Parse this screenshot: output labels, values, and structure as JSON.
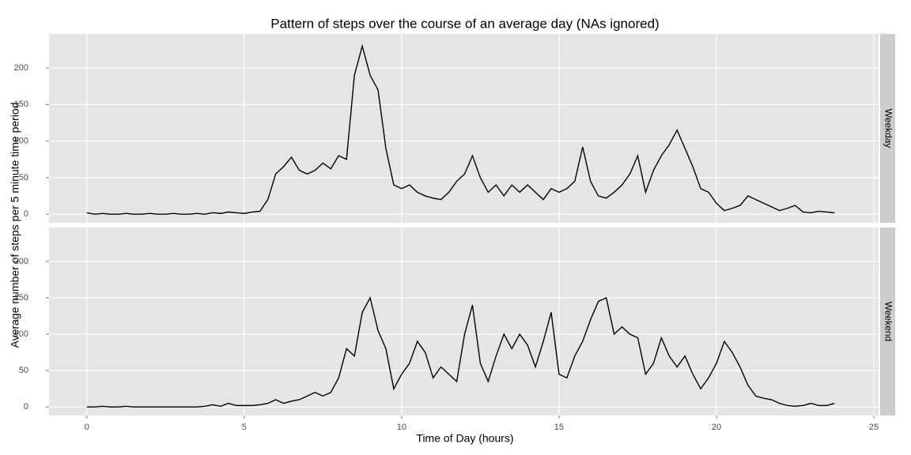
{
  "chart_data": {
    "type": "line",
    "title": "Pattern of steps over the course of an average day (NAs ignored)",
    "x_label": "Time of Day (hours)",
    "y_label": "Average number of steps per 5 minute time period",
    "x": [
      0,
      0.25,
      0.5,
      0.75,
      1,
      1.25,
      1.5,
      1.75,
      2,
      2.25,
      2.5,
      2.75,
      3,
      3.25,
      3.5,
      3.75,
      4,
      4.25,
      4.5,
      4.75,
      5,
      5.25,
      5.5,
      5.75,
      6,
      6.25,
      6.5,
      6.75,
      7,
      7.25,
      7.5,
      7.75,
      8,
      8.25,
      8.5,
      8.75,
      9,
      9.25,
      9.5,
      9.75,
      10,
      10.25,
      10.5,
      10.75,
      11,
      11.25,
      11.5,
      11.75,
      12,
      12.25,
      12.5,
      12.75,
      13,
      13.25,
      13.5,
      13.75,
      14,
      14.25,
      14.5,
      14.75,
      15,
      15.25,
      15.5,
      15.75,
      16,
      16.25,
      16.5,
      16.75,
      17,
      17.25,
      17.5,
      17.75,
      18,
      18.25,
      18.5,
      18.75,
      19,
      19.25,
      19.5,
      19.75,
      20,
      20.25,
      20.5,
      20.75,
      21,
      21.25,
      21.5,
      21.75,
      22,
      22.25,
      22.5,
      22.75,
      23,
      23.25,
      23.5,
      23.75
    ],
    "series": [
      {
        "name": "Weekday",
        "color": "#000000",
        "values": [
          2,
          0,
          1,
          0,
          0,
          1,
          0,
          0,
          1,
          0,
          0,
          1,
          0,
          0,
          1,
          0,
          2,
          1,
          3,
          2,
          1,
          3,
          4,
          20,
          55,
          65,
          78,
          60,
          55,
          60,
          70,
          62,
          80,
          75,
          190,
          230,
          190,
          170,
          90,
          40,
          35,
          40,
          30,
          25,
          22,
          20,
          30,
          45,
          55,
          80,
          50,
          30,
          40,
          25,
          40,
          30,
          40,
          30,
          20,
          35,
          30,
          35,
          45,
          92,
          45,
          25,
          22,
          30,
          40,
          55,
          80,
          30,
          60,
          80,
          95,
          115,
          90,
          65,
          35,
          30,
          15,
          5,
          8,
          12,
          25,
          20,
          15,
          10,
          5,
          8,
          12,
          3,
          2,
          4,
          3,
          2
        ]
      },
      {
        "name": "Weekend",
        "color": "#000000",
        "values": [
          0,
          0,
          1,
          0,
          0,
          1,
          0,
          0,
          0,
          0,
          0,
          0,
          0,
          0,
          0,
          1,
          3,
          1,
          5,
          2,
          2,
          2,
          3,
          5,
          10,
          5,
          8,
          10,
          15,
          20,
          15,
          20,
          40,
          80,
          70,
          130,
          150,
          105,
          80,
          25,
          45,
          60,
          90,
          75,
          40,
          55,
          45,
          35,
          100,
          140,
          60,
          35,
          70,
          100,
          80,
          100,
          85,
          55,
          90,
          130,
          45,
          40,
          70,
          90,
          120,
          145,
          150,
          100,
          110,
          100,
          95,
          45,
          60,
          95,
          70,
          55,
          70,
          45,
          25,
          40,
          60,
          90,
          75,
          55,
          30,
          15,
          12,
          10,
          5,
          2,
          1,
          2,
          5,
          2,
          2,
          5
        ]
      }
    ],
    "xlim": [
      -1.2,
      25.15
    ],
    "ylim": [
      -11.7,
      246.5
    ],
    "xticks": [
      0,
      5,
      10,
      15,
      20,
      25
    ],
    "yticks": [
      0,
      50,
      100,
      150,
      200
    ],
    "grid": true
  }
}
